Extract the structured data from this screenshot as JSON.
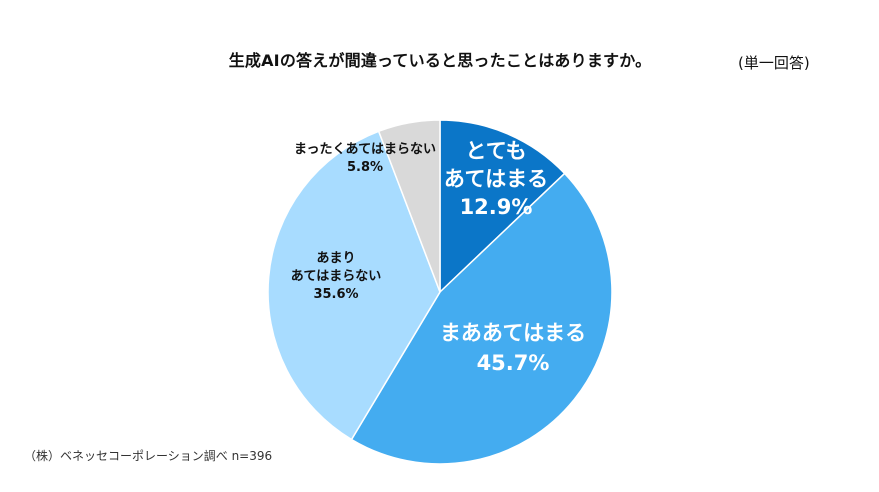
{
  "header": {
    "title": "生成AIの答えが間違っていると思ったことはありますか。",
    "answer_type": "(単一回答)"
  },
  "footer": {
    "source": "（株）ベネッセコーポレーション調べ n=396"
  },
  "chart_data": {
    "type": "pie",
    "title": "生成AIの答えが間違っていると思ったことはありますか。",
    "slices": [
      {
        "label_lines": [
          "とても",
          "あてはまる"
        ],
        "value": 12.9,
        "display": "12.9%",
        "color": "#0b76c8"
      },
      {
        "label_lines": [
          "まああてはまる"
        ],
        "value": 45.7,
        "display": "45.7%",
        "color": "#44acf0"
      },
      {
        "label_lines": [
          "あまり",
          "あてはまらない"
        ],
        "value": 35.6,
        "display": "35.6%",
        "color": "#a8dcff"
      },
      {
        "label_lines": [
          "まったくあてはまらない"
        ],
        "value": 5.8,
        "display": "5.8%",
        "color": "#d9d9d9"
      }
    ],
    "start_angle": "12 o'clock",
    "direction": "clockwise",
    "legend": "none"
  }
}
